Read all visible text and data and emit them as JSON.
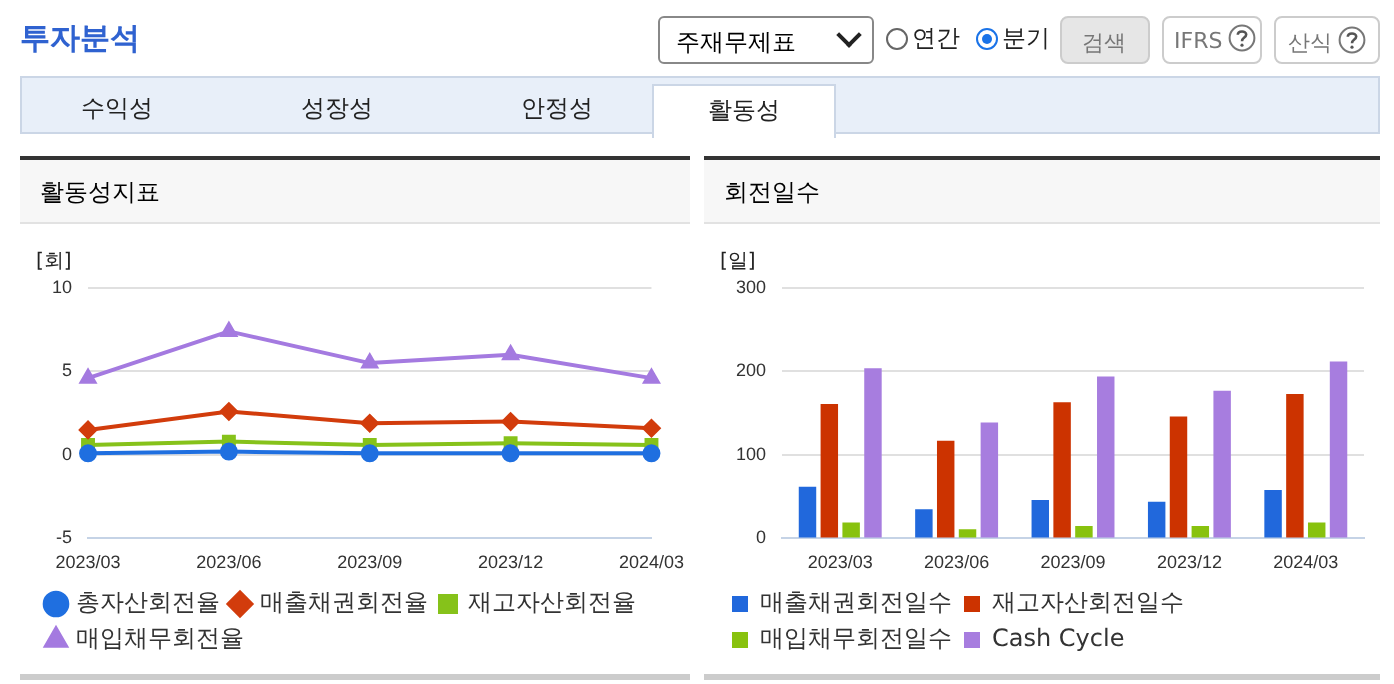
{
  "chart_data": [
    {
      "type": "other",
      "title": "투자분석",
      "annotations": [
        "주재무제표",
        "연간",
        "분기",
        "검색",
        "IFRS",
        "산식",
        "수익성",
        "성장성",
        "안정성",
        "활동성"
      ]
    },
    {
      "type": "line",
      "title": "활동성지표",
      "ylabel": "[회]",
      "categories": [
        "2023/03",
        "2023/06",
        "2023/09",
        "2023/12",
        "2024/03"
      ],
      "ylim": [
        -5,
        10
      ],
      "yticks": [
        -5,
        0,
        5,
        10
      ],
      "grid": "y",
      "legend": "bottom",
      "series": [
        {
          "name": "총자산회전율",
          "color": "#1f6fe0",
          "marker": "circle",
          "values": [
            0.1,
            0.2,
            0.1,
            0.1,
            0.1
          ]
        },
        {
          "name": "매출채권회전율",
          "color": "#d23c0c",
          "marker": "diamond",
          "values": [
            1.5,
            2.6,
            1.9,
            2.0,
            1.6
          ]
        },
        {
          "name": "재고자산회전율",
          "color": "#86c21a",
          "marker": "square",
          "values": [
            0.6,
            0.8,
            0.6,
            0.7,
            0.6
          ]
        },
        {
          "name": "매입채무회전율",
          "color": "#a47ae0",
          "marker": "triangle",
          "values": [
            4.6,
            7.4,
            5.5,
            6.0,
            4.6
          ]
        }
      ]
    },
    {
      "type": "bar",
      "title": "회전일수",
      "ylabel": "[일]",
      "categories": [
        "2023/03",
        "2023/06",
        "2023/09",
        "2023/12",
        "2024/03"
      ],
      "ylim": [
        0,
        300
      ],
      "yticks": [
        0,
        100,
        200,
        300
      ],
      "grid": "y",
      "legend": "bottom",
      "series": [
        {
          "name": "매출채권회전일수",
          "color": "#2168dc",
          "values": [
            62,
            35,
            46,
            44,
            58
          ]
        },
        {
          "name": "재고자산회전일수",
          "color": "#cc3300",
          "values": [
            161,
            117,
            163,
            146,
            173
          ]
        },
        {
          "name": "매입채무회전일수",
          "color": "#88c20e",
          "values": [
            19,
            11,
            15,
            15,
            19
          ]
        },
        {
          "name": "Cash Cycle",
          "color": "#a77ddf",
          "values": [
            204,
            139,
            194,
            177,
            212
          ]
        }
      ]
    }
  ]
}
